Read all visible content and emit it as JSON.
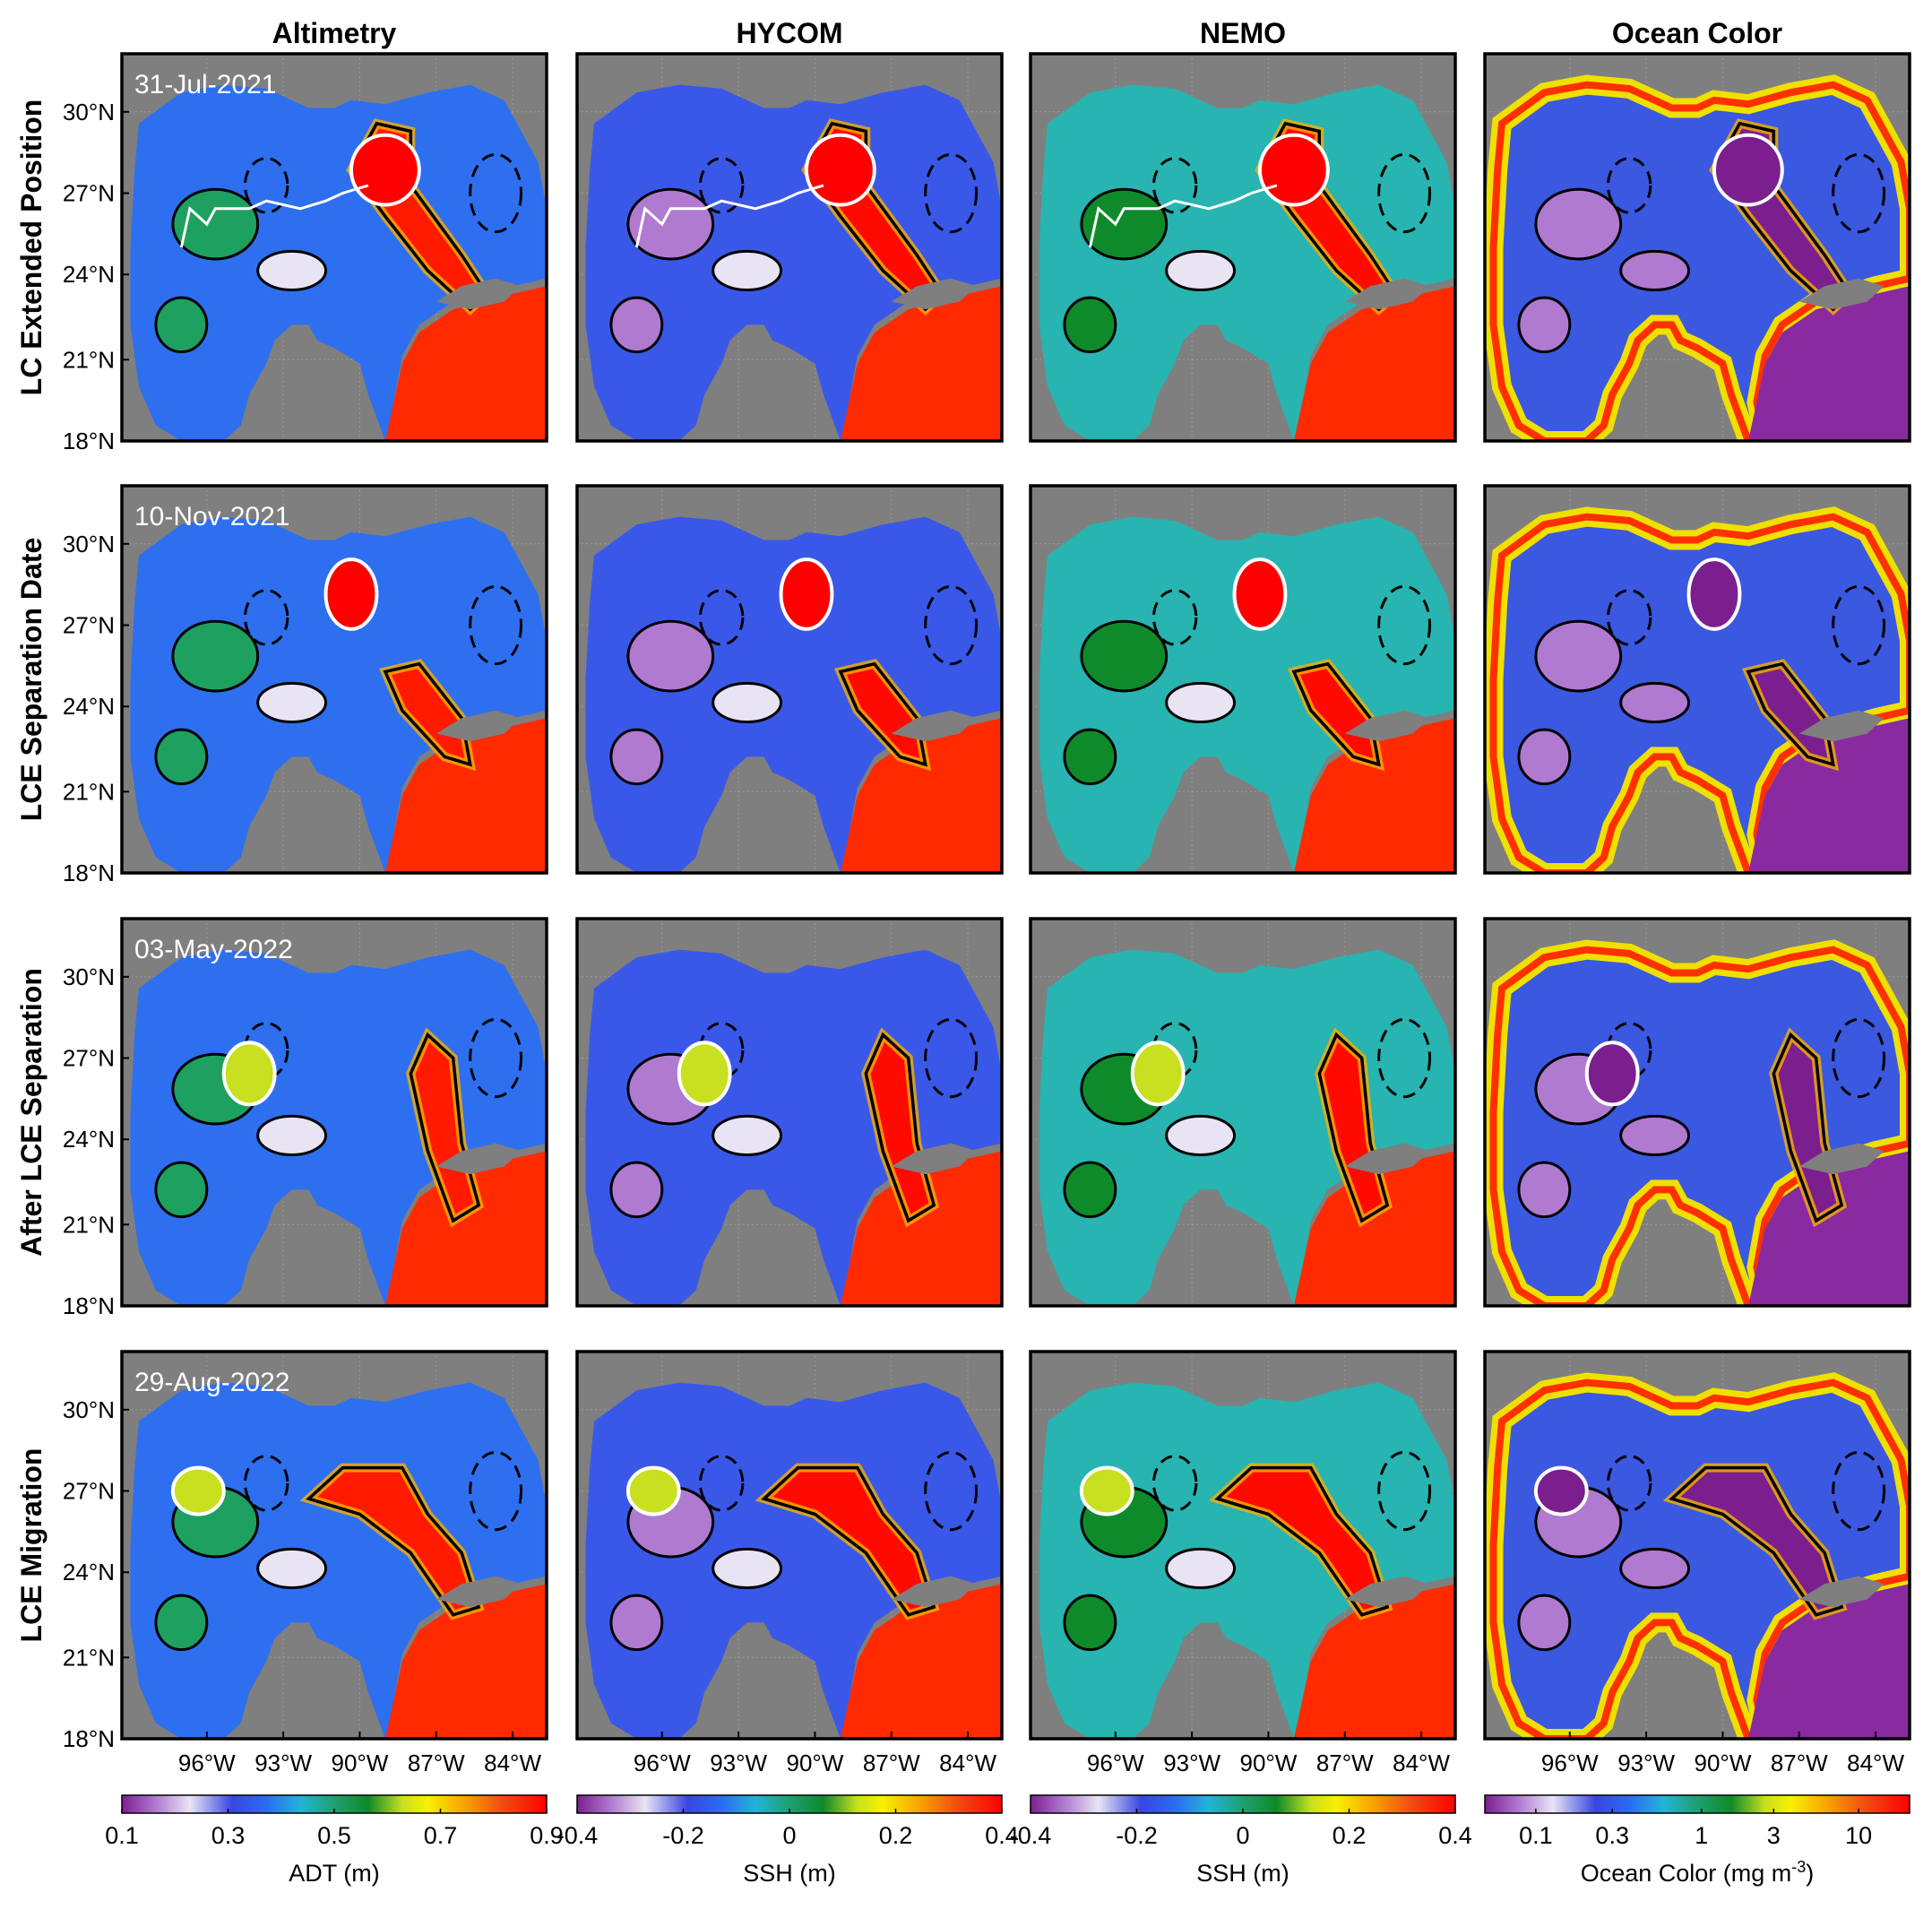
{
  "columns": [
    {
      "title": "Altimetry",
      "colorbar": {
        "label": "ADT (m)",
        "ticks": [
          "0.1",
          "0.3",
          "0.5",
          "0.7",
          "0.9"
        ]
      }
    },
    {
      "title": "HYCOM",
      "colorbar": {
        "label": "SSH (m)",
        "ticks": [
          "-0.4",
          "-0.2",
          "0",
          "0.2",
          "0.4"
        ]
      }
    },
    {
      "title": "NEMO",
      "colorbar": {
        "label": "SSH (m)",
        "ticks": [
          "-0.4",
          "-0.2",
          "0",
          "0.2",
          "0.4"
        ]
      }
    },
    {
      "title": "Ocean Color",
      "colorbar": {
        "label": "Ocean Color (mg m",
        "label_sup": "-3",
        "label_end": ")",
        "ticks": [
          "0.1",
          "0.3",
          "1",
          "3",
          "10"
        ]
      }
    }
  ],
  "rows": [
    {
      "label": "LC Extended Position",
      "date": "31-Jul-2021"
    },
    {
      "label": "LCE Separation Date",
      "date": "10-Nov-2021"
    },
    {
      "label": "After LCE Separation",
      "date": "03-May-2022"
    },
    {
      "label": "LCE Migration",
      "date": "29-Aug-2022"
    }
  ],
  "lat_ticks": [
    "30°N",
    "27°N",
    "24°N",
    "21°N",
    "18°N"
  ],
  "lon_ticks": [
    "96°W",
    "93°W",
    "90°W",
    "87°W",
    "84°W"
  ],
  "colors": {
    "land": "#7f7f7f",
    "colormap": [
      "#7b1f8f",
      "#b07ad0",
      "#e8e4f4",
      "#3a46e0",
      "#2a6cf0",
      "#22b4d8",
      "#1ea070",
      "#0f8a2a",
      "#c8e020",
      "#f8f000",
      "#f8a800",
      "#f04a10",
      "#ff0000"
    ]
  }
}
